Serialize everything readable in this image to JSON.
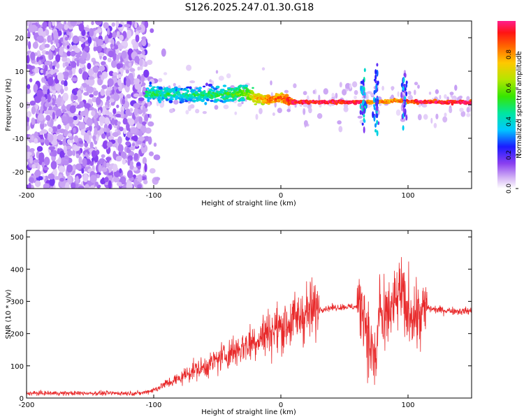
{
  "title": "S126.2025.247.01.30.G18",
  "colors": {
    "snr_line": "#e8292a",
    "axis": "#000000",
    "background": "#ffffff"
  },
  "chart_data": [
    {
      "type": "heatmap",
      "name": "spectrogram",
      "xlabel": "Height of straight line (km)",
      "ylabel": "Frequency (Hz)",
      "xlim": [
        -200,
        150
      ],
      "ylim": [
        -25,
        25
      ],
      "xticks": [
        -200,
        -100,
        0,
        100
      ],
      "yticks": [
        -20,
        -10,
        0,
        10,
        20
      ],
      "colorbar": {
        "label": "Normalized spectral amplitude",
        "range": [
          0.0,
          1.0
        ],
        "ticks": [
          0.0,
          0.2,
          0.4,
          0.6,
          0.8
        ],
        "tick_labels": [
          "0.0",
          "0.2",
          "0.4",
          "0.6",
          "0.8"
        ]
      },
      "features": {
        "noise_region_x": [
          -200,
          -105
        ],
        "noise_amplitude": 0.15,
        "signal_band": [
          {
            "x": -105,
            "f": 3.5,
            "amp": 0.5
          },
          {
            "x": -80,
            "f": 3.0,
            "amp": 0.45
          },
          {
            "x": -50,
            "f": 3.0,
            "amp": 0.5
          },
          {
            "x": -30,
            "f": 3.5,
            "amp": 0.6
          },
          {
            "x": -20,
            "f": 2.0,
            "amp": 0.75
          },
          {
            "x": -10,
            "f": 1.5,
            "amp": 0.85
          },
          {
            "x": 0,
            "f": 2.0,
            "amp": 0.85
          },
          {
            "x": 10,
            "f": 0.8,
            "amp": 0.95
          },
          {
            "x": 60,
            "f": 0.8,
            "amp": 0.95
          },
          {
            "x": 75,
            "f": 0.8,
            "amp": 0.8
          },
          {
            "x": 90,
            "f": 1.2,
            "amp": 0.8
          },
          {
            "x": 110,
            "f": 0.8,
            "amp": 0.95
          },
          {
            "x": 150,
            "f": 0.8,
            "amp": 0.95
          }
        ]
      }
    },
    {
      "type": "line",
      "name": "snr",
      "xlabel": "Height of straight line (km)",
      "ylabel": "SNR (10 * v/v)",
      "xlim": [
        -200,
        150
      ],
      "ylim": [
        0,
        520
      ],
      "xticks": [
        -200,
        -100,
        0,
        100
      ],
      "yticks": [
        0,
        100,
        200,
        300,
        400,
        500
      ],
      "series": [
        {
          "name": "SNR",
          "x": [
            -200,
            -150,
            -110,
            -100,
            -90,
            -80,
            -70,
            -60,
            -50,
            -40,
            -30,
            -20,
            -10,
            0,
            10,
            20,
            30,
            40,
            50,
            60,
            65,
            70,
            75,
            78,
            80,
            85,
            90,
            95,
            98,
            100,
            105,
            110,
            115,
            120,
            130,
            140,
            150
          ],
          "y": [
            15,
            15,
            15,
            25,
            45,
            60,
            85,
            95,
            120,
            140,
            160,
            180,
            205,
            220,
            240,
            265,
            275,
            280,
            283,
            283,
            285,
            160,
            110,
            330,
            200,
            270,
            290,
            340,
            250,
            280,
            260,
            250,
            280,
            275,
            272,
            270,
            270
          ]
        }
      ]
    }
  ]
}
